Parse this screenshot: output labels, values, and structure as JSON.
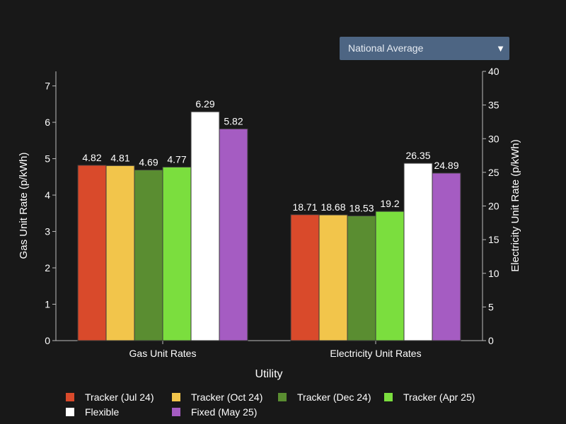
{
  "dropdown": {
    "selected": "National Average"
  },
  "chart_data": {
    "type": "bar",
    "categories": [
      "Gas Unit Rates",
      "Electricity Unit Rates"
    ],
    "xlabel": "Utility",
    "ylabel": "Gas Unit Rate (p/kWh)",
    "y2label": "Electricity Unit Rate (p/kWh)",
    "ylim": [
      0,
      7.4
    ],
    "y2lim": [
      0,
      40
    ],
    "yticks": [
      0,
      1,
      2,
      3,
      4,
      5,
      6,
      7
    ],
    "y2ticks": [
      0,
      5,
      10,
      15,
      20,
      25,
      30,
      35,
      40
    ],
    "grid": false,
    "legend_position": "bottom",
    "series": [
      {
        "name": "Tracker (Jul 24)",
        "color": "#d94a2b",
        "values": [
          4.82,
          18.71
        ],
        "labels": [
          "4.82",
          "18.71"
        ]
      },
      {
        "name": "Tracker (Oct 24)",
        "color": "#f2c54b",
        "values": [
          4.81,
          18.68
        ],
        "labels": [
          "4.81",
          "18.68"
        ]
      },
      {
        "name": "Tracker (Dec 24)",
        "color": "#5a8d31",
        "values": [
          4.69,
          18.53
        ],
        "labels": [
          "4.69",
          "18.53"
        ]
      },
      {
        "name": "Tracker (Apr 25)",
        "color": "#7bde3e",
        "values": [
          4.77,
          19.2
        ],
        "labels": [
          "4.77",
          "19.2"
        ]
      },
      {
        "name": "Flexible",
        "color": "#ffffff",
        "values": [
          6.29,
          26.35
        ],
        "labels": [
          "6.29",
          "26.35"
        ]
      },
      {
        "name": "Fixed (May 25)",
        "color": "#a55cc2",
        "values": [
          5.82,
          24.89
        ],
        "labels": [
          "5.82",
          "24.89"
        ]
      }
    ]
  }
}
